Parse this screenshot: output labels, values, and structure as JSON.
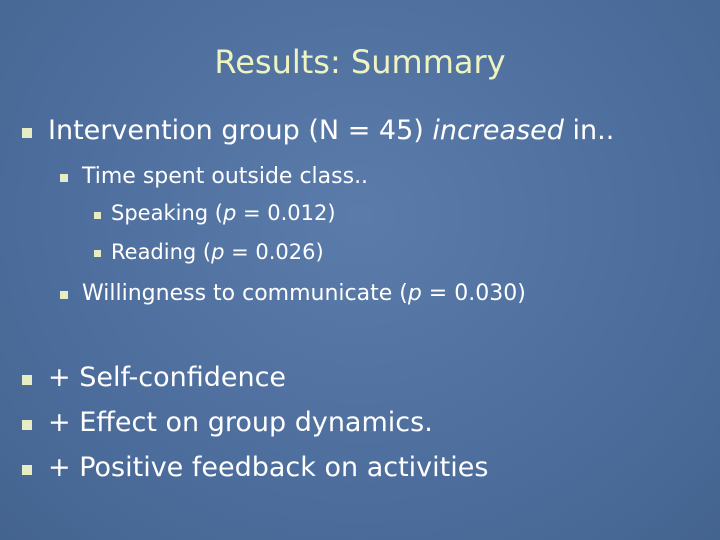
{
  "title": "Results: Summary",
  "bullets": [
    {
      "parts": [
        "Intervention group (N = 45) ",
        "increased",
        " in.."
      ]
    },
    {
      "parts": [
        "Time spent outside class.."
      ]
    },
    {
      "parts": [
        "Speaking (",
        "p",
        " = 0.012)"
      ]
    },
    {
      "parts": [
        "Reading (",
        "p",
        " = 0.026)"
      ]
    },
    {
      "parts": [
        "Willingness to communicate (",
        "p",
        " = 0.030)"
      ]
    },
    {
      "parts": [
        "+ Self-confidence"
      ]
    },
    {
      "parts": [
        "+ Effect on group dynamics."
      ]
    },
    {
      "parts": [
        "+ Positive feedback on activities"
      ]
    }
  ]
}
